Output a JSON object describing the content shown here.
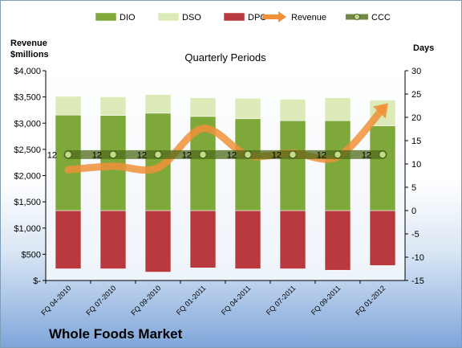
{
  "company": "Whole Foods Market",
  "chart_data": {
    "type": "bar",
    "title": "Quarterly Periods",
    "left_axis_label": [
      "Revenue",
      "$millions"
    ],
    "right_axis_label": "Days",
    "categories": [
      "FQ 04-2010",
      "FQ 07-2010",
      "FQ 09-2010",
      "FQ 01-2011",
      "FQ 04-2011",
      "FQ 07-2011",
      "FQ 09-2011",
      "FQ 01-2012"
    ],
    "left_ylim": [
      0,
      4000
    ],
    "left_ticks": [
      0,
      500,
      1000,
      1500,
      2000,
      2500,
      3000,
      3500,
      4000
    ],
    "left_tick_labels": [
      "$-",
      "$500",
      "$1,000",
      "$1,500",
      "$2,000",
      "$2,500",
      "$3,000",
      "$3,500",
      "$4,000"
    ],
    "right_ylim": [
      -15,
      30
    ],
    "right_ticks": [
      -15,
      -10,
      -5,
      0,
      5,
      10,
      15,
      20,
      25,
      30
    ],
    "right_tick_labels": [
      "-15",
      "-10",
      "-5",
      "0",
      "5",
      "10",
      "15",
      "20",
      "25",
      "30"
    ],
    "series": [
      {
        "name": "DIO",
        "axis": "right",
        "color": "#7fa83a",
        "values": [
          20.5,
          20.4,
          20.9,
          20.2,
          19.7,
          19.3,
          19.3,
          18.2
        ]
      },
      {
        "name": "DSO",
        "axis": "right",
        "color": "#dceab8",
        "values": [
          4.0,
          4.0,
          4.0,
          4.0,
          4.4,
          4.6,
          4.9,
          5.5
        ]
      },
      {
        "name": "DPO",
        "axis": "right",
        "color": "#b83a3e",
        "values": [
          -12.5,
          -12.5,
          -13.2,
          -12.3,
          -12.5,
          -12.5,
          -12.8,
          -11.8
        ]
      },
      {
        "name": "Revenue",
        "axis": "left",
        "color": "#f0913a",
        "values": [
          2110,
          2180,
          2150,
          2900,
          2390,
          2430,
          2360,
          3270
        ]
      },
      {
        "name": "CCC",
        "axis": "right",
        "color": "#5a7a1e",
        "values": [
          12,
          12,
          12,
          12,
          12,
          12,
          12,
          12
        ],
        "labels": [
          "12",
          "12",
          "12",
          "12",
          "12",
          "12",
          "12",
          "12"
        ]
      }
    ],
    "legend_position": "top",
    "grid": false
  }
}
